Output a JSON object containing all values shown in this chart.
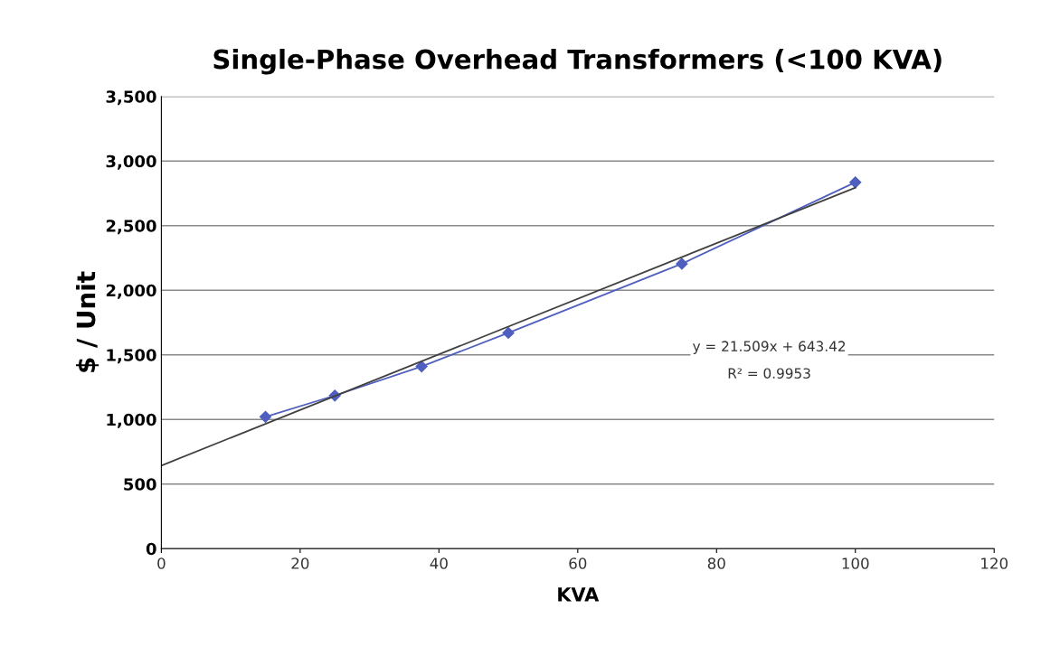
{
  "chart_data": {
    "type": "line",
    "title": "Single-Phase Overhead Transformers (<100 KVA)",
    "xlabel": "KVA",
    "ylabel": "$ / Unit",
    "xlim": [
      0,
      120
    ],
    "xticks": [
      0,
      20,
      40,
      60,
      80,
      100,
      120
    ],
    "ylim": [
      0,
      3500
    ],
    "yticks": [
      {
        "value": 0,
        "label": "0"
      },
      {
        "value": 500,
        "label": "500"
      },
      {
        "value": 1000,
        "label": "1,000"
      },
      {
        "value": 1500,
        "label": "1,500"
      },
      {
        "value": 2000,
        "label": "2,000"
      },
      {
        "value": 2500,
        "label": "2,500"
      },
      {
        "value": 3000,
        "label": "3,000"
      },
      {
        "value": 3500,
        "label": "3,500"
      }
    ],
    "grid": "y",
    "series": [
      {
        "color": "#4f5fbf",
        "marker": "diamond",
        "x": [
          15,
          25,
          37.5,
          50,
          75,
          100
        ],
        "values": [
          1020,
          1185,
          1410,
          1670,
          2205,
          2835
        ]
      },
      {
        "color": "#404040",
        "marker": "none",
        "x": [
          0,
          100
        ],
        "values": [
          643,
          2794
        ]
      }
    ],
    "annotations": [
      "y = 21.509x + 643.42",
      "R² = 0.9953"
    ]
  }
}
